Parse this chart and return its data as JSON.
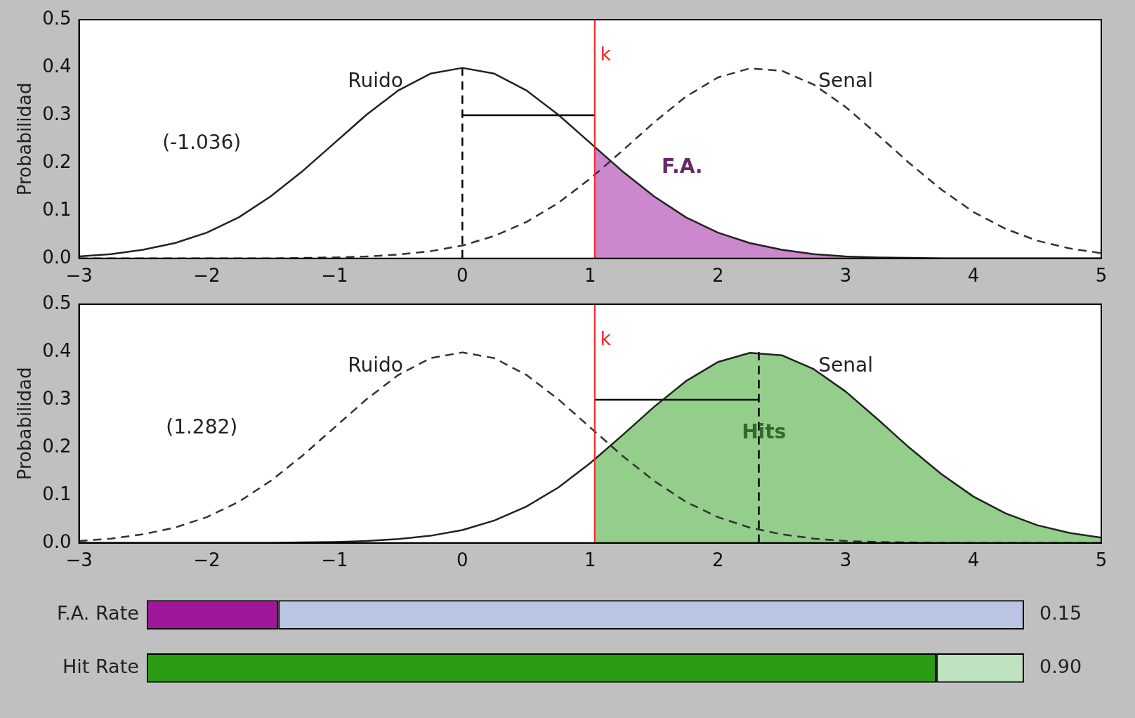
{
  "chart_data": [
    {
      "type": "line",
      "ylabel": "Probabilidad",
      "xlim": [
        -3,
        5
      ],
      "ylim": [
        0,
        0.5
      ],
      "xticks": [
        {
          "value": -3,
          "label": "−3"
        },
        {
          "value": -2,
          "label": "−2"
        },
        {
          "value": -1,
          "label": "−1"
        },
        0,
        1,
        2,
        3,
        4,
        5
      ],
      "yticks": [
        {
          "value": 0,
          "label": "0.0"
        },
        0.1,
        0.2,
        0.3,
        0.4,
        0.5
      ],
      "grid": false,
      "legend": false,
      "marker": "none",
      "x": [
        -3,
        -2.75,
        -2.5,
        -2.25,
        -2,
        -1.75,
        -1.5,
        -1.25,
        -1,
        -0.75,
        -0.5,
        -0.25,
        0,
        0.25,
        0.5,
        0.75,
        1,
        1.25,
        1.5,
        1.75,
        2,
        2.25,
        2.5,
        2.75,
        3,
        3.25,
        3.5,
        3.75,
        4,
        4.25,
        4.5,
        4.75,
        5
      ],
      "series": [
        {
          "type": "area",
          "name": "F.A.",
          "color": "#cc88cc",
          "x": [
            1.036,
            1.25,
            1.5,
            1.75,
            2,
            2.25,
            2.5,
            2.75,
            3,
            3.25,
            3.5,
            3.75,
            4,
            4.25,
            4.5,
            4.75,
            5
          ],
          "values": [
            0.233,
            0.183,
            0.13,
            0.086,
            0.054,
            0.032,
            0.018,
            0.009,
            0.004,
            0.002,
            0.001,
            0,
            0,
            0,
            0,
            0,
            0
          ]
        },
        {
          "type": "line",
          "color": "#222222",
          "line_style": "solid",
          "values": [
            0.004,
            0.009,
            0.018,
            0.032,
            0.054,
            0.086,
            0.13,
            0.183,
            0.242,
            0.301,
            0.352,
            0.387,
            0.399,
            0.387,
            0.352,
            0.301,
            0.242,
            0.183,
            0.13,
            0.086,
            0.054,
            0.032,
            0.018,
            0.009,
            0.004,
            0.002,
            0.001,
            0,
            0,
            0,
            0,
            0,
            0
          ]
        },
        {
          "type": "line",
          "color": "#333333",
          "line_style": "dashed",
          "values": [
            0,
            0,
            0,
            0,
            0,
            0,
            0,
            0.001,
            0.002,
            0.004,
            0.008,
            0.015,
            0.027,
            0.047,
            0.076,
            0.116,
            0.167,
            0.225,
            0.285,
            0.339,
            0.379,
            0.398,
            0.393,
            0.364,
            0.317,
            0.259,
            0.199,
            0.144,
            0.097,
            0.062,
            0.037,
            0.021,
            0.011
          ]
        },
        {
          "type": "line",
          "color": "#000000",
          "line_style": "dashed",
          "x": [
            0,
            0
          ],
          "values": [
            0,
            0.4
          ]
        },
        {
          "type": "line",
          "color": "#000000",
          "line_style": "solid",
          "x": [
            0,
            1.036
          ],
          "values": [
            0.3,
            0.3
          ]
        }
      ],
      "ref_lines": [
        {
          "axis": "x",
          "value": 1.036,
          "label": "k",
          "color": "#ff2020"
        }
      ],
      "annotations": [
        "Ruido",
        "Senal",
        "(-1.036)"
      ]
    },
    {
      "type": "line",
      "ylabel": "Probabilidad",
      "xlim": [
        -3,
        5
      ],
      "ylim": [
        0,
        0.5
      ],
      "xticks": [
        {
          "value": -3,
          "label": "−3"
        },
        {
          "value": -2,
          "label": "−2"
        },
        {
          "value": -1,
          "label": "−1"
        },
        0,
        1,
        2,
        3,
        4,
        5
      ],
      "yticks": [
        {
          "value": 0,
          "label": "0.0"
        },
        0.1,
        0.2,
        0.3,
        0.4,
        0.5
      ],
      "grid": false,
      "legend": false,
      "marker": "none",
      "x": [
        -3,
        -2.75,
        -2.5,
        -2.25,
        -2,
        -1.75,
        -1.5,
        -1.25,
        -1,
        -0.75,
        -0.5,
        -0.25,
        0,
        0.25,
        0.5,
        0.75,
        1,
        1.25,
        1.5,
        1.75,
        2,
        2.25,
        2.5,
        2.75,
        3,
        3.25,
        3.5,
        3.75,
        4,
        4.25,
        4.5,
        4.75,
        5
      ],
      "series": [
        {
          "type": "area",
          "name": "Hits",
          "color": "#93cf8a",
          "x": [
            1.036,
            1.25,
            1.5,
            1.75,
            2,
            2.25,
            2.5,
            2.75,
            3,
            3.25,
            3.5,
            3.75,
            4,
            4.25,
            4.5,
            4.75,
            5
          ],
          "values": [
            0.175,
            0.225,
            0.285,
            0.339,
            0.379,
            0.398,
            0.393,
            0.364,
            0.317,
            0.259,
            0.199,
            0.144,
            0.097,
            0.062,
            0.037,
            0.021,
            0.011
          ]
        },
        {
          "type": "line",
          "color": "#333333",
          "line_style": "dashed",
          "values": [
            0.004,
            0.009,
            0.018,
            0.032,
            0.054,
            0.086,
            0.13,
            0.183,
            0.242,
            0.301,
            0.352,
            0.387,
            0.399,
            0.387,
            0.352,
            0.301,
            0.242,
            0.183,
            0.13,
            0.086,
            0.054,
            0.032,
            0.018,
            0.009,
            0.004,
            0.002,
            0.001,
            0,
            0,
            0,
            0,
            0,
            0
          ]
        },
        {
          "type": "line",
          "color": "#222222",
          "line_style": "solid",
          "values": [
            0,
            0,
            0,
            0,
            0,
            0,
            0,
            0.001,
            0.002,
            0.004,
            0.008,
            0.015,
            0.027,
            0.047,
            0.076,
            0.116,
            0.167,
            0.225,
            0.285,
            0.339,
            0.379,
            0.398,
            0.393,
            0.364,
            0.317,
            0.259,
            0.199,
            0.144,
            0.097,
            0.062,
            0.037,
            0.021,
            0.011
          ]
        },
        {
          "type": "line",
          "color": "#000000",
          "line_style": "dashed",
          "x": [
            2.32,
            2.32
          ],
          "values": [
            0,
            0.4
          ]
        },
        {
          "type": "line",
          "color": "#000000",
          "line_style": "solid",
          "x": [
            1.036,
            2.32
          ],
          "values": [
            0.3,
            0.3
          ]
        }
      ],
      "ref_lines": [
        {
          "axis": "x",
          "value": 1.036,
          "label": "k",
          "color": "#ff2020"
        }
      ],
      "annotations": [
        "Ruido",
        "Senal",
        "(1.282)"
      ]
    },
    {
      "type": "bar",
      "orientation": "horizontal",
      "stacked": true,
      "xlim": [
        0,
        1
      ],
      "tick_labels": "y",
      "legend": false,
      "grid": false,
      "categories": [
        "F.A. Rate",
        "Hit Rate"
      ],
      "series": [
        {
          "colors": [
            "#a0179a",
            "#2a9d14"
          ],
          "values": [
            0.15,
            0.9
          ],
          "value_labels": [
            "0.15",
            "0.90"
          ]
        },
        {
          "colors": [
            "#b9c5e2",
            "#bfe3c0"
          ],
          "values": [
            0.85,
            0.1
          ]
        }
      ]
    }
  ]
}
